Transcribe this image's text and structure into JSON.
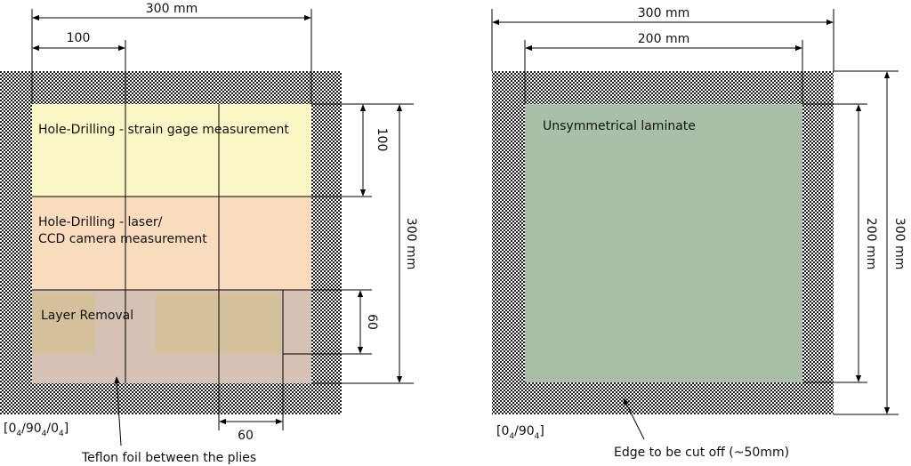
{
  "left_panel": {
    "dim_width_total": "300 mm",
    "dim_width_100": "100",
    "dim_height_total": "300 mm",
    "dim_height_100": "100",
    "dim_height_60": "60",
    "dim_width_60": "60",
    "region_hole_strain": "Hole-Drilling - strain gage measurement",
    "region_hole_laser_line1": "Hole-Drilling - laser/",
    "region_hole_laser_line2": "CCD camera measurement",
    "region_layer_removal": "Layer Removal",
    "layup_base": "[0",
    "layup_sub_a": "4",
    "layup_mid": "/90",
    "layup_sub_b": "4",
    "layup_mid2": "/0",
    "layup_sub_c": "4",
    "layup_end": "]",
    "callout_teflon": "Teflon foil between the plies",
    "colors": {
      "yellow": "#fbf6c6",
      "orange": "#f9dcbd",
      "brown": "#d6c2b5",
      "tan": "#d4c19b"
    }
  },
  "right_panel": {
    "dim_width_total": "300 mm",
    "dim_width_inner": "200 mm",
    "dim_height_inner": "200 mm",
    "dim_height_total": "300 mm",
    "region_label": "Unsymmetrical laminate",
    "layup_base": "[0",
    "layup_sub_a": "4",
    "layup_mid": "/90",
    "layup_sub_b": "4",
    "layup_end": "]",
    "callout_edge": "Edge to be cut off (~50mm)",
    "colors": {
      "green": "#a9bfa8"
    }
  }
}
